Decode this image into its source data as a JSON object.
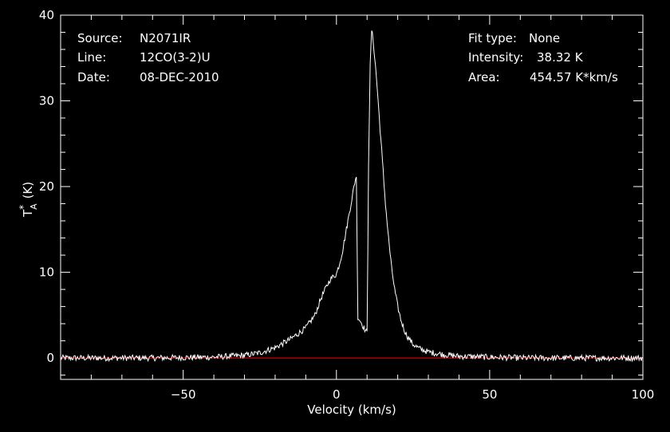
{
  "header": {
    "source_label": "Source:",
    "source_value": "N2071IR",
    "line_label": "Line:",
    "line_value": "12CO(3-2)U",
    "date_label": "Date:",
    "date_value": "08-DEC-2010",
    "fit_type_label": "Fit type:",
    "fit_type_value": "None",
    "intensity_label": "Intensity:",
    "intensity_value": "38.32 K",
    "area_label": "Area:",
    "area_value": "454.57 K*km/s"
  },
  "colors": {
    "background": "#000000",
    "foreground": "#ffffff",
    "baseline": "#ff0000"
  },
  "chart_data": {
    "type": "line",
    "title": "",
    "xlabel": "Velocity (km/s)",
    "ylabel": "TA* (K)",
    "ylabel_main": "T",
    "ylabel_sup": "*",
    "ylabel_sub": "A",
    "ylabel_unit": "(K)",
    "xlim": [
      -90,
      100
    ],
    "ylim": [
      -2.5,
      40
    ],
    "x_ticks": [
      -50,
      0,
      50,
      100
    ],
    "x_tick_labels": [
      "−50",
      "0",
      "50",
      "100"
    ],
    "y_ticks": [
      0,
      10,
      20,
      30,
      40
    ],
    "y_tick_labels": [
      "0",
      "10",
      "20",
      "30",
      "40"
    ],
    "grid": false,
    "baseline_value": 0,
    "series": [
      {
        "x": [
          -90,
          -60,
          -40,
          -30,
          -25,
          -20,
          -15,
          -10,
          -7,
          -5,
          -3,
          -2,
          0,
          1,
          2,
          3,
          4,
          5,
          6,
          6.5,
          7,
          7.5,
          8,
          9,
          10,
          10.5,
          11,
          11.5,
          12,
          13,
          14,
          15,
          16,
          17,
          18,
          19,
          20,
          21,
          22,
          23,
          25,
          27,
          30,
          35,
          40,
          50,
          60,
          80,
          100
        ],
        "y": [
          0,
          0,
          0.1,
          0.3,
          0.6,
          1.2,
          2.2,
          3.5,
          5,
          7,
          8.5,
          9.2,
          9.8,
          11,
          12.5,
          14.5,
          16.5,
          18.5,
          20.5,
          21.3,
          4.8,
          4.5,
          4.2,
          3.5,
          2.9,
          23,
          34,
          38.3,
          37,
          33,
          28,
          23,
          18,
          14,
          10.5,
          8,
          6,
          4.5,
          3.4,
          2.6,
          1.6,
          1.1,
          0.7,
          0.4,
          0.2,
          0.1,
          0,
          0,
          0
        ]
      }
    ]
  }
}
